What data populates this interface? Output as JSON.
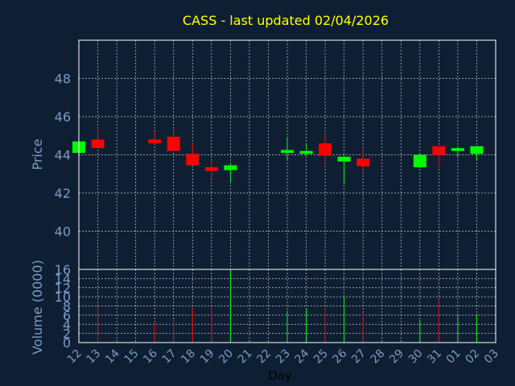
{
  "chart_data": [
    {
      "type": "candlestick",
      "title": "CASS - last updated 02/04/2026",
      "xlabel": "Day",
      "ylabel": "Price",
      "ylim": [
        38,
        50
      ],
      "yticks": [
        40,
        42,
        44,
        46,
        48
      ],
      "grid": true,
      "x_ticks": [
        "12",
        "13",
        "14",
        "15",
        "16",
        "17",
        "18",
        "19",
        "20",
        "21",
        "22",
        "23",
        "24",
        "25",
        "26",
        "27",
        "28",
        "29",
        "30",
        "31",
        "01",
        "02",
        "03"
      ],
      "candles": [
        {
          "day": "12",
          "open": 44.1,
          "high": 44.7,
          "low": 44.1,
          "close": 44.7
        },
        {
          "day": "13",
          "open": 44.8,
          "high": 45.4,
          "low": 44.35,
          "close": 44.35
        },
        {
          "day": "16",
          "open": 44.8,
          "high": 45.2,
          "low": 44.5,
          "close": 44.6
        },
        {
          "day": "17",
          "open": 44.95,
          "high": 45.35,
          "low": 44.2,
          "close": 44.2
        },
        {
          "day": "18",
          "open": 44.05,
          "high": 44.6,
          "low": 43.45,
          "close": 43.45
        },
        {
          "day": "19",
          "open": 43.35,
          "high": 43.7,
          "low": 42.75,
          "close": 43.15
        },
        {
          "day": "20",
          "open": 43.2,
          "high": 43.5,
          "low": 42.55,
          "close": 43.45
        },
        {
          "day": "23",
          "open": 44.1,
          "high": 44.95,
          "low": 43.7,
          "close": 44.25
        },
        {
          "day": "24",
          "open": 44.05,
          "high": 44.55,
          "low": 43.95,
          "close": 44.2
        },
        {
          "day": "25",
          "open": 44.6,
          "high": 45.15,
          "low": 43.55,
          "close": 43.95
        },
        {
          "day": "26",
          "open": 43.65,
          "high": 43.95,
          "low": 42.45,
          "close": 43.9
        },
        {
          "day": "27",
          "open": 43.8,
          "high": 44.35,
          "low": 43.1,
          "close": 43.4
        },
        {
          "day": "30",
          "open": 43.35,
          "high": 44.05,
          "low": 43.3,
          "close": 44.0
        },
        {
          "day": "31",
          "open": 44.45,
          "high": 44.45,
          "low": 43.35,
          "close": 44.0
        },
        {
          "day": "01",
          "open": 44.2,
          "high": 44.45,
          "low": 43.9,
          "close": 44.35
        },
        {
          "day": "02",
          "open": 44.05,
          "high": 44.45,
          "low": 43.7,
          "close": 44.45
        }
      ]
    },
    {
      "type": "bar",
      "xlabel": "Day",
      "ylabel": "Volume (0000)",
      "ylim": [
        0,
        16
      ],
      "yticks": [
        0,
        2,
        4,
        6,
        8,
        10,
        12,
        14,
        16
      ],
      "grid": true,
      "x_ticks": [
        "12",
        "13",
        "14",
        "15",
        "16",
        "17",
        "18",
        "19",
        "20",
        "21",
        "22",
        "23",
        "24",
        "25",
        "26",
        "27",
        "28",
        "29",
        "30",
        "31",
        "01",
        "02",
        "03"
      ],
      "bars": [
        {
          "day": "13",
          "value": 7.8,
          "direction": "down"
        },
        {
          "day": "16",
          "value": 4.2,
          "direction": "down"
        },
        {
          "day": "17",
          "value": 5.0,
          "direction": "down"
        },
        {
          "day": "18",
          "value": 7.5,
          "direction": "down"
        },
        {
          "day": "19",
          "value": 7.8,
          "direction": "down"
        },
        {
          "day": "20",
          "value": 16.0,
          "direction": "up"
        },
        {
          "day": "23",
          "value": 7.0,
          "direction": "up"
        },
        {
          "day": "24",
          "value": 7.5,
          "direction": "up"
        },
        {
          "day": "25",
          "value": 7.5,
          "direction": "down"
        },
        {
          "day": "26",
          "value": 10.0,
          "direction": "up"
        },
        {
          "day": "27",
          "value": 6.5,
          "direction": "down"
        },
        {
          "day": "30",
          "value": 5.0,
          "direction": "up"
        },
        {
          "day": "31",
          "value": 9.2,
          "direction": "down"
        },
        {
          "day": "01",
          "value": 6.2,
          "direction": "up"
        },
        {
          "day": "02",
          "value": 6.2,
          "direction": "up"
        }
      ]
    }
  ],
  "colors": {
    "background": "#0f1f33",
    "axis": "#ffffff",
    "grid": "#c8c8c8",
    "label": "#7a9cc6",
    "title": "#ffff00",
    "up": "#00ff00",
    "down": "#ff0000",
    "xlabel_text": "#000000"
  }
}
